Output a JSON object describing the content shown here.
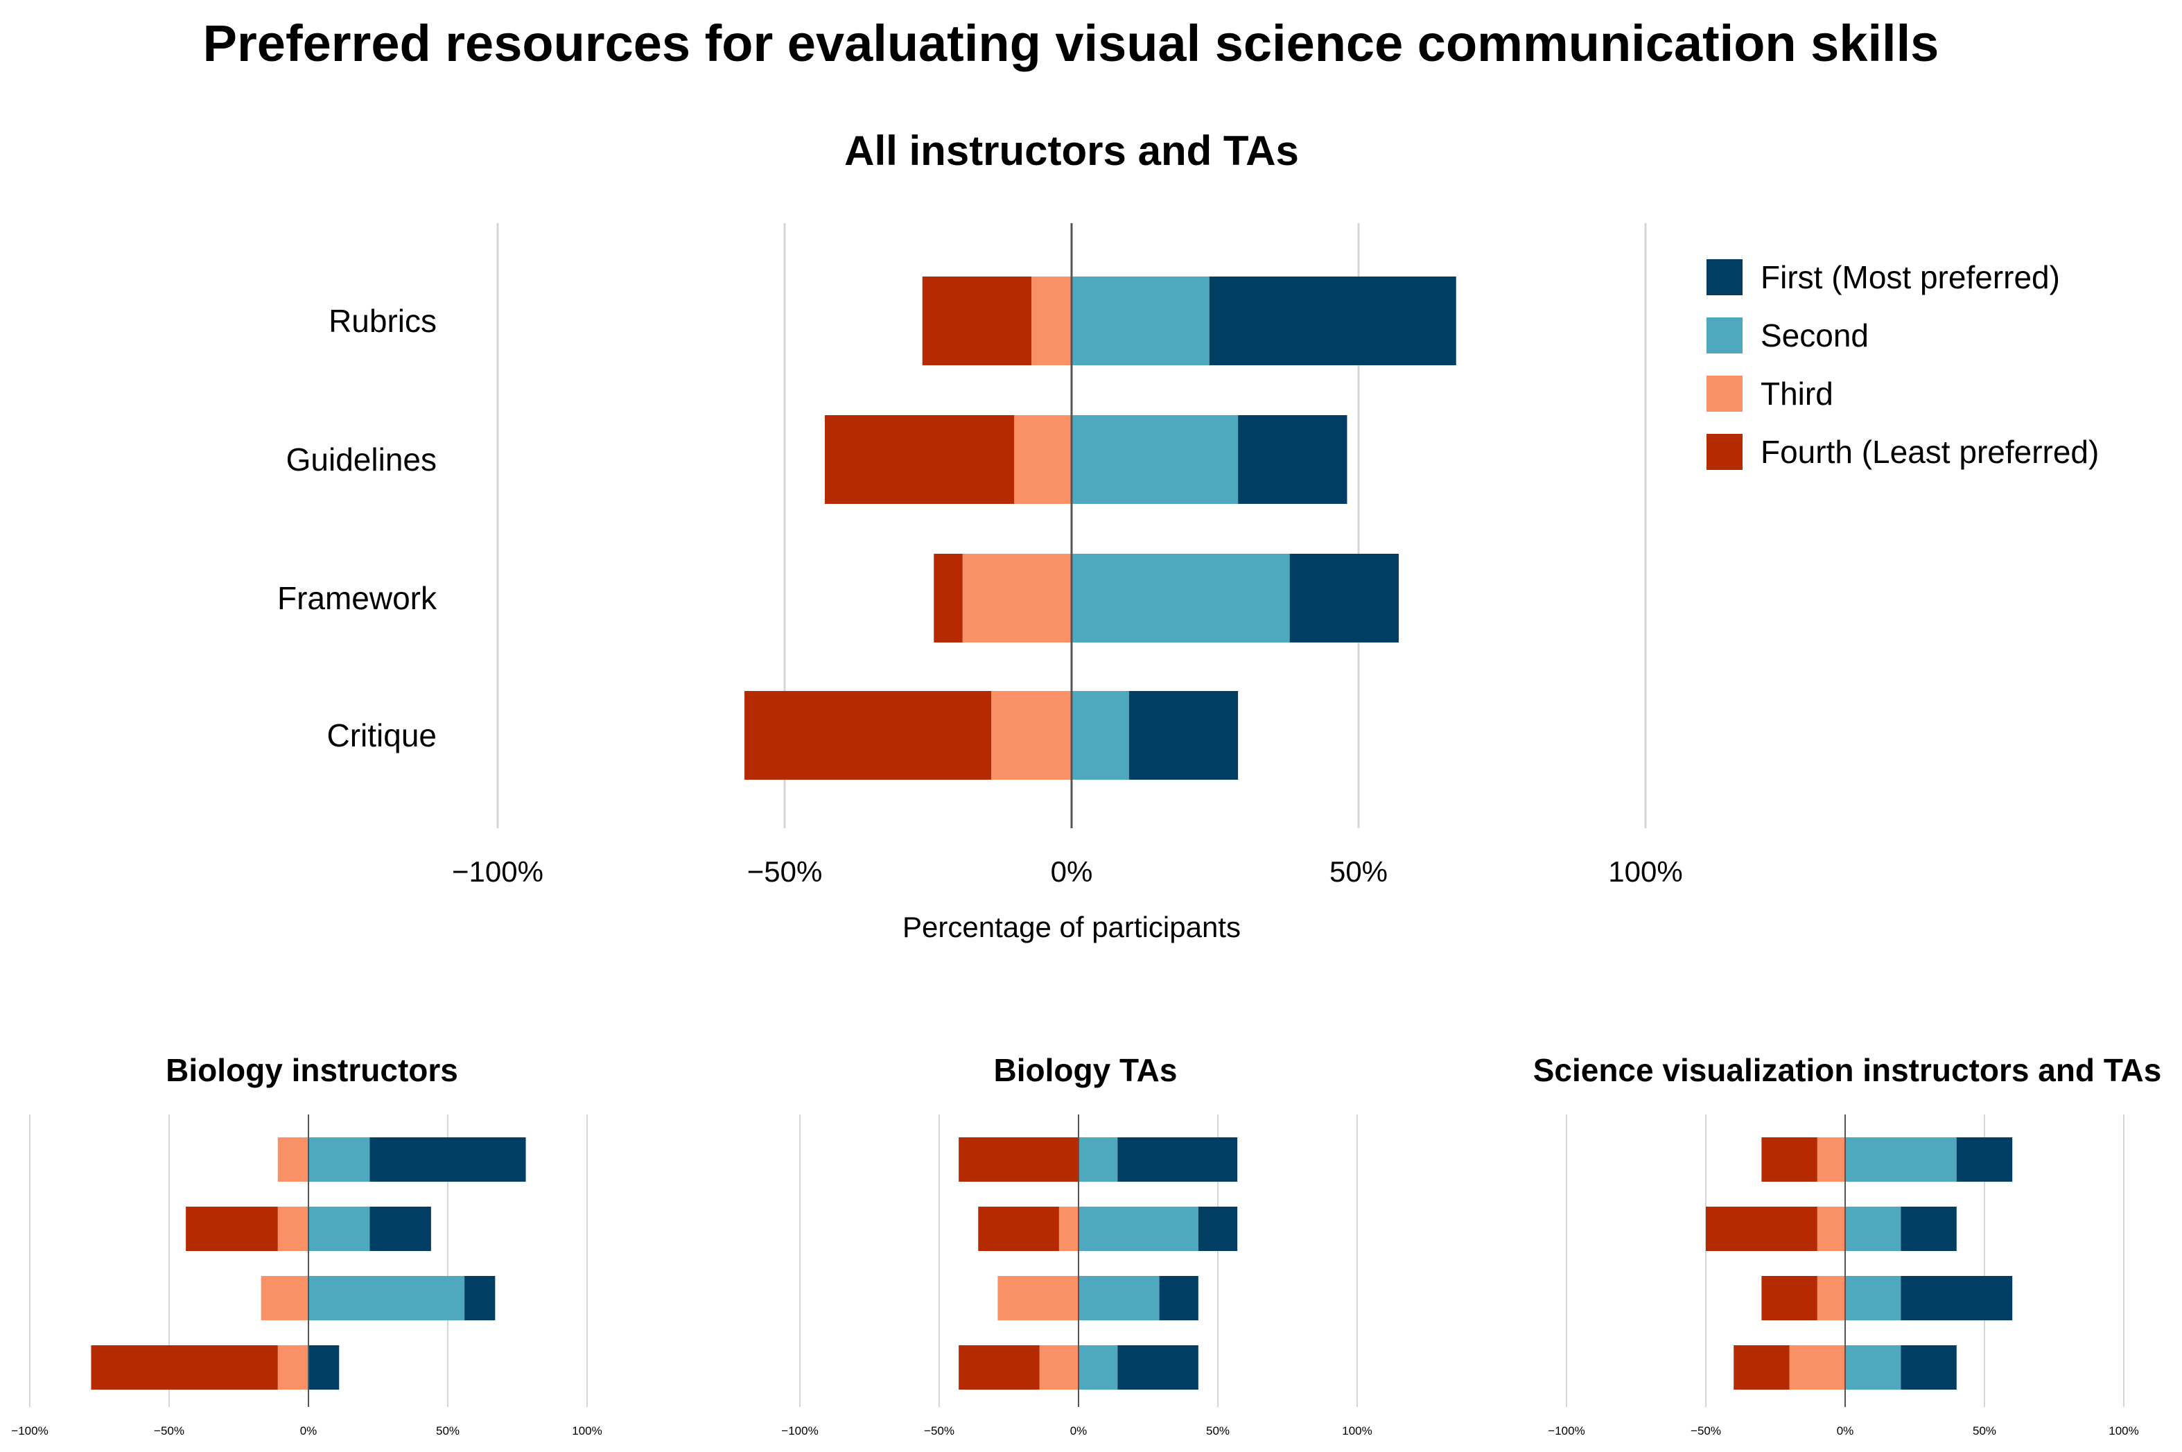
{
  "figure_title": "Preferred resources for evaluating visual science communication skills",
  "colors": {
    "First (Most preferred)": "#003f63",
    "Second": "#4ea9bf",
    "Third": "#f99066",
    "Fourth (Least preferred)": "#b52a00",
    "gridline": "#d6d6d6",
    "zero_line": "#555555"
  },
  "chart_data": [
    {
      "id": "all",
      "type": "bar",
      "orientation": "horizontal-diverging",
      "title": "All instructors and TAs",
      "xlabel": "Percentage of participants",
      "xlim": [
        -100,
        100
      ],
      "xticks": [
        -100,
        -50,
        0,
        50,
        100
      ],
      "xtick_labels": [
        "−100%",
        "−50%",
        "0%",
        "50%",
        "100%"
      ],
      "grid": true,
      "legend": "right",
      "categories": [
        "Rubrics",
        "Guidelines",
        "Framework",
        "Critique"
      ],
      "series": [
        {
          "name": "First (Most preferred)",
          "side": "positive",
          "values": [
            43,
            19,
            19,
            19
          ]
        },
        {
          "name": "Second",
          "side": "positive",
          "values": [
            24,
            29,
            38,
            10
          ]
        },
        {
          "name": "Third",
          "side": "negative",
          "values": [
            7,
            10,
            19,
            14
          ]
        },
        {
          "name": "Fourth (Least preferred)",
          "side": "negative",
          "values": [
            19,
            33,
            5,
            43
          ]
        }
      ]
    },
    {
      "id": "bio_instructors",
      "type": "bar",
      "orientation": "horizontal-diverging",
      "title": "Biology instructors",
      "xlim": [
        -100,
        100
      ],
      "xticks": [
        -100,
        -50,
        0,
        50,
        100
      ],
      "xtick_labels": [
        "−100%",
        "−50%",
        "0%",
        "50%",
        "100%"
      ],
      "grid": true,
      "categories": [
        "Rubrics",
        "Guidelines",
        "Framework",
        "Critique"
      ],
      "series": [
        {
          "name": "First (Most preferred)",
          "side": "positive",
          "values": [
            56,
            22,
            11,
            11
          ]
        },
        {
          "name": "Second",
          "side": "positive",
          "values": [
            22,
            22,
            56,
            0
          ]
        },
        {
          "name": "Third",
          "side": "negative",
          "values": [
            11,
            11,
            17,
            11
          ]
        },
        {
          "name": "Fourth (Least preferred)",
          "side": "negative",
          "values": [
            0,
            33,
            0,
            67
          ]
        }
      ]
    },
    {
      "id": "bio_tas",
      "type": "bar",
      "orientation": "horizontal-diverging",
      "title": "Biology TAs",
      "xlim": [
        -100,
        100
      ],
      "xticks": [
        -100,
        -50,
        0,
        50,
        100
      ],
      "xtick_labels": [
        "−100%",
        "−50%",
        "0%",
        "50%",
        "100%"
      ],
      "grid": true,
      "categories": [
        "Rubrics",
        "Guidelines",
        "Framework",
        "Critique"
      ],
      "series": [
        {
          "name": "First (Most preferred)",
          "side": "positive",
          "values": [
            43,
            14,
            14,
            29
          ]
        },
        {
          "name": "Second",
          "side": "positive",
          "values": [
            14,
            43,
            29,
            14
          ]
        },
        {
          "name": "Third",
          "side": "negative",
          "values": [
            0,
            7,
            29,
            14
          ]
        },
        {
          "name": "Fourth (Least preferred)",
          "side": "negative",
          "values": [
            43,
            29,
            0,
            29
          ]
        }
      ]
    },
    {
      "id": "scivis",
      "type": "bar",
      "orientation": "horizontal-diverging",
      "title": "Science visualization instructors and TAs",
      "xlim": [
        -100,
        100
      ],
      "xticks": [
        -100,
        -50,
        0,
        50,
        100
      ],
      "xtick_labels": [
        "−100%",
        "−50%",
        "0%",
        "50%",
        "100%"
      ],
      "grid": true,
      "categories": [
        "Rubrics",
        "Guidelines",
        "Framework",
        "Critique"
      ],
      "series": [
        {
          "name": "First (Most preferred)",
          "side": "positive",
          "values": [
            20,
            20,
            40,
            20
          ]
        },
        {
          "name": "Second",
          "side": "positive",
          "values": [
            40,
            20,
            20,
            20
          ]
        },
        {
          "name": "Third",
          "side": "negative",
          "values": [
            10,
            10,
            10,
            20
          ]
        },
        {
          "name": "Fourth (Least preferred)",
          "side": "negative",
          "values": [
            20,
            40,
            20,
            20
          ]
        }
      ]
    }
  ]
}
